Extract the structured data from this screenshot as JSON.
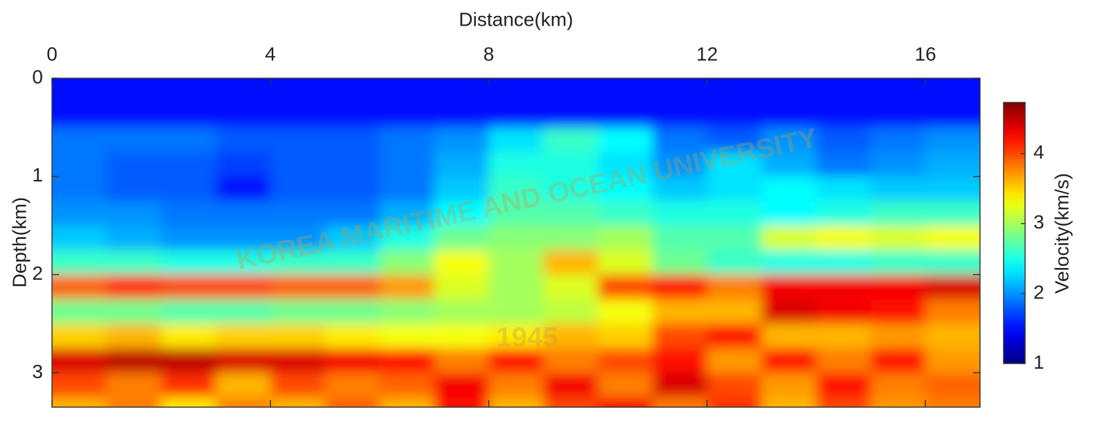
{
  "chart_data": {
    "type": "heatmap",
    "xlabel": "Distance(km)",
    "ylabel": "Depth(km)",
    "x": [
      0,
      1,
      2,
      3,
      4,
      5,
      6,
      7,
      8,
      9,
      10,
      11,
      12,
      13,
      14,
      15,
      16,
      17
    ],
    "y": [
      0,
      0.25,
      0.5,
      0.75,
      1,
      1.25,
      1.5,
      1.75,
      2,
      2.25,
      2.5,
      2.75,
      3,
      3.25,
      3.35
    ],
    "xlim": [
      0,
      17
    ],
    "xticks": [
      0,
      4,
      8,
      12,
      16
    ],
    "ylim": [
      0,
      3.35
    ],
    "yticks": [
      0,
      1,
      2,
      3
    ],
    "colormap": "jet",
    "colorbar": {
      "label": "Velocity(km/s)",
      "lim": [
        1,
        4.73
      ],
      "ticks": [
        1,
        2,
        3,
        4
      ]
    },
    "values": [
      [
        1.5,
        1.5,
        1.5,
        1.5,
        1.5,
        1.5,
        1.5,
        1.5,
        1.5,
        1.5,
        1.5,
        1.5,
        1.5,
        1.5,
        1.5,
        1.5,
        1.5
      ],
      [
        1.5,
        1.5,
        1.5,
        1.5,
        1.5,
        1.5,
        1.5,
        1.5,
        1.5,
        1.5,
        1.5,
        1.5,
        1.5,
        1.5,
        1.5,
        1.5,
        1.5
      ],
      [
        1.9,
        1.9,
        1.9,
        1.8,
        1.8,
        1.8,
        1.9,
        2.0,
        2.3,
        2.6,
        2.4,
        1.9,
        1.8,
        2.0,
        1.8,
        1.9,
        2.0
      ],
      [
        1.9,
        1.8,
        1.8,
        1.7,
        1.8,
        1.8,
        1.9,
        2.1,
        2.5,
        2.5,
        2.3,
        2.0,
        2.3,
        2.1,
        1.9,
        2.0,
        2.1
      ],
      [
        1.9,
        1.8,
        1.8,
        1.5,
        1.8,
        1.8,
        1.9,
        2.2,
        2.6,
        2.5,
        2.4,
        2.2,
        2.3,
        2.4,
        2.3,
        2.2,
        2.2
      ],
      [
        2.0,
        2.0,
        1.9,
        1.9,
        1.9,
        1.9,
        2.1,
        2.4,
        2.7,
        2.7,
        2.6,
        2.5,
        2.5,
        2.4,
        2.5,
        2.6,
        2.6
      ],
      [
        2.2,
        2.1,
        2.0,
        2.0,
        2.0,
        2.2,
        2.5,
        2.8,
        2.9,
        2.9,
        3.0,
        2.7,
        2.7,
        3.2,
        3.3,
        3.2,
        3.3
      ],
      [
        2.6,
        2.6,
        2.5,
        2.5,
        2.6,
        2.6,
        2.9,
        3.3,
        3.0,
        3.6,
        3.2,
        2.8,
        2.6,
        2.5,
        2.5,
        2.6,
        2.6
      ],
      [
        3.9,
        4.1,
        4.0,
        4.0,
        3.9,
        3.9,
        3.7,
        3.2,
        3.0,
        3.2,
        4.0,
        4.2,
        3.8,
        4.3,
        4.3,
        4.3,
        4.4
      ],
      [
        2.8,
        2.8,
        2.7,
        2.7,
        2.8,
        2.8,
        2.9,
        3.0,
        3.0,
        3.1,
        3.3,
        3.6,
        3.6,
        4.4,
        4.3,
        4.2,
        3.8
      ],
      [
        3.5,
        3.6,
        3.4,
        3.5,
        3.5,
        3.4,
        3.3,
        3.3,
        3.4,
        3.6,
        3.5,
        4.0,
        4.2,
        3.6,
        3.6,
        3.7,
        3.6
      ],
      [
        4.4,
        4.5,
        4.5,
        4.4,
        4.4,
        4.3,
        4.2,
        3.8,
        4.2,
        3.8,
        4.0,
        4.2,
        3.7,
        4.2,
        3.8,
        4.2,
        3.7
      ],
      [
        4.0,
        3.8,
        4.1,
        3.6,
        4.0,
        3.8,
        3.9,
        4.3,
        3.8,
        4.3,
        3.8,
        4.4,
        4.0,
        3.7,
        4.2,
        3.8,
        3.9
      ],
      [
        3.6,
        3.8,
        3.4,
        3.8,
        3.6,
        3.9,
        3.6,
        4.2,
        3.6,
        4.0,
        4.3,
        3.8,
        4.1,
        3.6,
        4.0,
        3.7,
        3.8
      ]
    ],
    "watermark": {
      "text": "KOREA MARITIME AND OCEAN UNIVERSITY",
      "year": "1945"
    }
  }
}
